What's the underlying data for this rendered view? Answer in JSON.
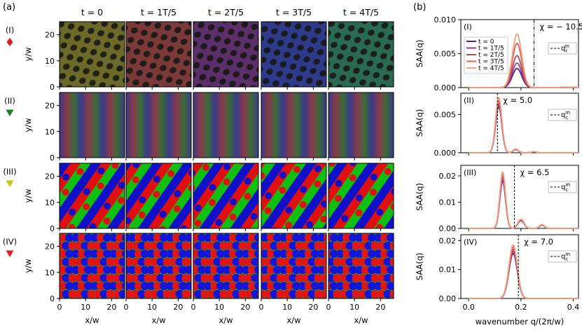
{
  "panel_labels": {
    "a": "(a)",
    "b": "(b)"
  },
  "row_labels": [
    "(I)",
    "(II)",
    "(III)",
    "(IV)"
  ],
  "markers": [
    {
      "shape": "diamond",
      "color": "#e41a1c"
    },
    {
      "shape": "triangle-down",
      "color": "#1a7f1a"
    },
    {
      "shape": "triangle-down",
      "color": "#c8c800"
    },
    {
      "shape": "triangle-down",
      "color": "#e41a1c"
    }
  ],
  "time_labels": [
    "t = 0",
    "t = 1T/5",
    "t = 2T/5",
    "t = 3T/5",
    "t = 4T/5"
  ],
  "heatmap_axes": {
    "xlabel": "x/w",
    "ylabel": "y/w",
    "xticks": [
      "0",
      "10",
      "20"
    ],
    "yticks": [
      "0",
      "10",
      "20"
    ]
  },
  "pattern_palettes": [
    [
      "#6b6a2a",
      "#7a3a3a",
      "#5a2f6a",
      "#2e3a8a",
      "#2a6a55"
    ],
    [
      "rgb",
      "rgb",
      "rgb",
      "rgb",
      "rgb"
    ],
    [
      "rgb",
      "rgb",
      "rgb",
      "rgb",
      "rgb"
    ],
    [
      "rgb",
      "rgb",
      "rgb",
      "rgb",
      "rgb"
    ]
  ],
  "spectrum_axes": {
    "ylabel": "S_AA(q)",
    "xlabel": "wavenumber q/(2π/w)",
    "xticks": [
      "0.0",
      "0.2",
      "0.4"
    ],
    "xlim": [
      -0.03,
      0.42
    ]
  },
  "series_colors": [
    "#5a1e8a",
    "#8a3f9f",
    "#b4495a",
    "#e3605a",
    "#f4a07a"
  ],
  "chart_data": [
    {
      "type": "line",
      "row": "(I)",
      "chi_label": "χ = − 10.5",
      "qc_x": 0.25,
      "legend_label": "q_r^m",
      "yticks": [
        "0.000",
        "0.005",
        "0.010"
      ],
      "ylim": [
        0,
        0.01
      ],
      "series": [
        {
          "name": "t = 0",
          "peak": 0.0028
        },
        {
          "name": "t = 1T/5",
          "peak": 0.0036
        },
        {
          "name": "t = 2T/5",
          "peak": 0.0047
        },
        {
          "name": "t = 3T/5",
          "peak": 0.0065
        },
        {
          "name": "t = 4T/5",
          "peak": 0.0079
        }
      ],
      "peak_q": 0.185,
      "peak_width": 0.018,
      "x": [
        0.0,
        0.1,
        0.15,
        0.17,
        0.185,
        0.2,
        0.22,
        0.25,
        0.3,
        0.4
      ]
    },
    {
      "type": "line",
      "row": "(II)",
      "chi_label": "χ = 5.0",
      "qc_x": 0.11,
      "legend_label": "q_c^m",
      "yticks": [
        "0.000",
        "0.005"
      ],
      "ylim": [
        0,
        0.0078
      ],
      "peaks": [
        {
          "q": 0.115,
          "h": 0.0072,
          "w": 0.012
        },
        {
          "q": 0.18,
          "h": 0.0005,
          "w": 0.01
        },
        {
          "q": 0.25,
          "h": 0.00015,
          "w": 0.01
        }
      ],
      "x": [
        0.0,
        0.08,
        0.1,
        0.115,
        0.13,
        0.15,
        0.18,
        0.25,
        0.4
      ]
    },
    {
      "type": "line",
      "row": "(III)",
      "chi_label": "χ = 6.5",
      "qc_x": 0.175,
      "legend_label": "q_c^m",
      "yticks": [
        "0.00",
        "0.01",
        "0.02"
      ],
      "ylim": [
        0,
        0.024
      ],
      "peaks": [
        {
          "q": 0.13,
          "h": 0.0215,
          "w": 0.011
        },
        {
          "q": 0.2,
          "h": 0.0035,
          "w": 0.012
        },
        {
          "q": 0.28,
          "h": 0.0015,
          "w": 0.01
        }
      ],
      "x": [
        0.0,
        0.1,
        0.13,
        0.16,
        0.2,
        0.24,
        0.28,
        0.4
      ]
    },
    {
      "type": "line",
      "row": "(IV)",
      "chi_label": "χ = 7.0",
      "qc_x": 0.19,
      "legend_label": "q_c^m",
      "yticks": [
        "0.00",
        "0.01",
        "0.02"
      ],
      "ylim": [
        0,
        0.022
      ],
      "peaks": [
        {
          "q": 0.17,
          "h": 0.0185,
          "w": 0.016
        }
      ],
      "x": [
        0.0,
        0.12,
        0.15,
        0.17,
        0.19,
        0.21,
        0.4
      ]
    }
  ]
}
